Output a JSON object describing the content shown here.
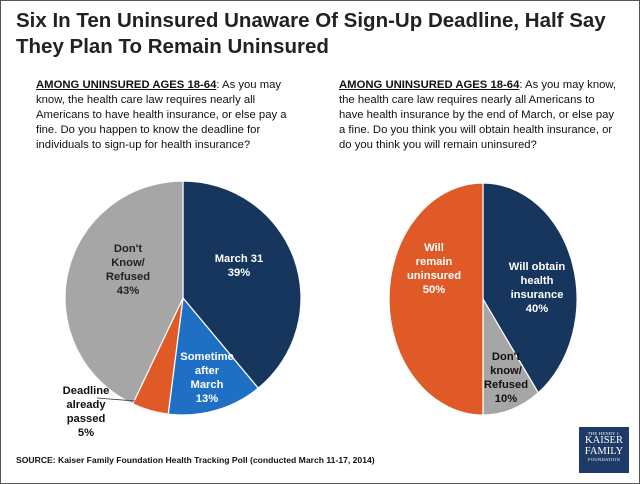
{
  "title_line1": "Six In Ten Uninsured Unaware Of Sign-Up Deadline, Half Say",
  "title_line2": "They Plan To Remain Uninsured",
  "source": "SOURCE: Kaiser Family Foundation Health Tracking Poll (conducted March 11-17, 2014)",
  "logo": {
    "line1": "THE HENRY J.",
    "line2a": "KAISER",
    "line2b": "FAMILY",
    "line3": "FOUNDATION"
  },
  "chart_data": [
    {
      "type": "pie",
      "question_lead": "AMONG UNINSURED AGES 18-64",
      "question_text": ": As you may know, the health care law requires nearly all Americans to have health insurance, or else pay a fine. Do you happen to know the deadline for individuals to sign-up for health insurance?",
      "slices": [
        {
          "label": [
            "March 31",
            "39%"
          ],
          "value": 39,
          "color": "#17365d"
        },
        {
          "label": [
            "Sometime",
            "after",
            "March",
            "13%"
          ],
          "value": 13,
          "color": "#1f6fc4"
        },
        {
          "label": [
            "Deadline",
            "already",
            "passed",
            "5%"
          ],
          "value": 5,
          "color": "#e05a27"
        },
        {
          "label": [
            "Don't",
            "Know/",
            "Refused",
            "43%"
          ],
          "value": 43,
          "color": "#a6a6a6"
        }
      ]
    },
    {
      "type": "pie",
      "question_lead": "AMONG UNINSURED AGES 18-64",
      "question_text": ": As you may know, the health care law requires nearly all Americans to have health insurance by the end of March, or else pay a fine. Do you think you will obtain health insurance, or do you think you will remain uninsured?",
      "slices": [
        {
          "label": [
            "Will obtain",
            "health",
            "insurance",
            "40%"
          ],
          "value": 40,
          "color": "#17365d"
        },
        {
          "label": [
            "Don't",
            "know/",
            "Refused",
            "10%"
          ],
          "value": 10,
          "color": "#a6a6a6"
        },
        {
          "label": [
            "Will",
            "remain",
            "uninsured",
            "50%"
          ],
          "value": 50,
          "color": "#e05a27"
        }
      ]
    }
  ]
}
